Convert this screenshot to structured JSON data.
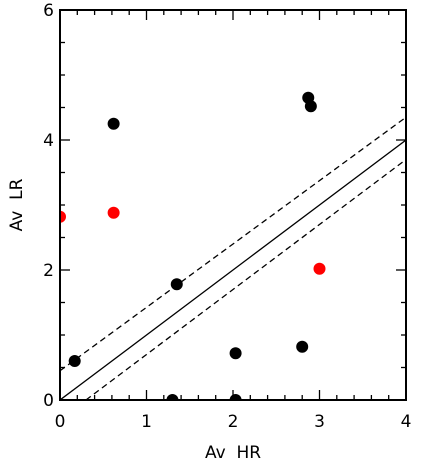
{
  "chart_data": {
    "type": "scatter",
    "xlabel": "Av  HR",
    "ylabel": "Av  LR",
    "xlim": [
      0,
      4
    ],
    "ylim": [
      0,
      6
    ],
    "x_ticks": [
      0,
      1,
      2,
      3,
      4
    ],
    "y_ticks": [
      0,
      2,
      4,
      6
    ],
    "x_tick_labels": [
      "0",
      "1",
      "2",
      "3",
      "4"
    ],
    "y_tick_labels": [
      "0",
      "2",
      "4",
      "6"
    ],
    "grid": false,
    "series": [
      {
        "color": "#000000",
        "marker": "filled-circle",
        "points": [
          {
            "x": 0.17,
            "y": 0.6
          },
          {
            "x": 0.62,
            "y": 4.25
          },
          {
            "x": 1.35,
            "y": 1.78
          },
          {
            "x": 1.3,
            "y": 0.0
          },
          {
            "x": 2.03,
            "y": 0.72
          },
          {
            "x": 2.03,
            "y": 0.0
          },
          {
            "x": 2.8,
            "y": 0.82
          },
          {
            "x": 2.87,
            "y": 4.65
          },
          {
            "x": 2.9,
            "y": 4.52
          }
        ]
      },
      {
        "color": "#ff0000",
        "marker": "filled-circle",
        "points": [
          {
            "x": 0.0,
            "y": 2.82
          },
          {
            "x": 0.62,
            "y": 2.88
          },
          {
            "x": 3.0,
            "y": 2.02
          }
        ]
      }
    ],
    "lines": [
      {
        "style": "solid",
        "x": [
          0,
          4
        ],
        "y": [
          0.0,
          4.0
        ]
      },
      {
        "style": "dashed",
        "x": [
          0,
          4
        ],
        "y": [
          0.45,
          4.35
        ]
      },
      {
        "style": "dashed",
        "x": [
          0.3,
          4
        ],
        "y": [
          0.0,
          3.7
        ]
      }
    ]
  }
}
